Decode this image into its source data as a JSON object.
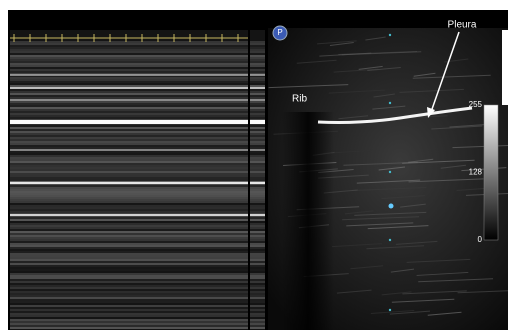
{
  "labels": {
    "badge": "P",
    "pleura": "Pleura",
    "rib": "Rib"
  },
  "scale": {
    "ticks": [
      255,
      128,
      0
    ]
  }
}
